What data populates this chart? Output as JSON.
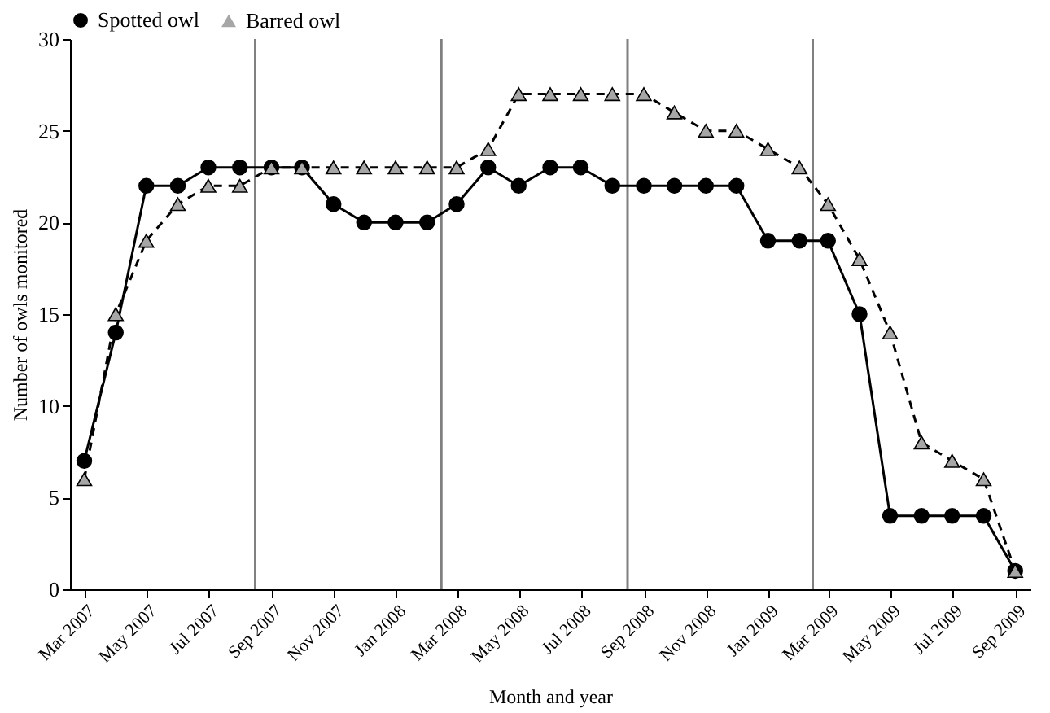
{
  "chart_data": {
    "type": "line",
    "xlabel": "Month and year",
    "ylabel": "Number of owls monitored",
    "x": [
      "2007-03",
      "2007-04",
      "2007-05",
      "2007-06",
      "2007-07",
      "2007-08",
      "2007-09",
      "2007-10",
      "2007-11",
      "2007-12",
      "2008-01",
      "2008-02",
      "2008-03",
      "2008-04",
      "2008-05",
      "2008-06",
      "2008-07",
      "2008-08",
      "2008-09",
      "2008-10",
      "2008-11",
      "2008-12",
      "2009-01",
      "2009-02",
      "2009-03",
      "2009-04",
      "2009-05",
      "2009-06",
      "2009-07",
      "2009-08",
      "2009-09"
    ],
    "series": [
      {
        "name": "Spotted owl",
        "color": "#000000",
        "marker": "circle",
        "line_style": "solid",
        "values": [
          7,
          14,
          22,
          22,
          23,
          23,
          23,
          23,
          21,
          20,
          20,
          20,
          21,
          23,
          22,
          23,
          23,
          22,
          22,
          22,
          22,
          22,
          19,
          19,
          19,
          15,
          4,
          4,
          4,
          4,
          1
        ]
      },
      {
        "name": "Barred owl",
        "color": "#a6a6a6",
        "marker": "triangle",
        "line_style": "dashed",
        "values": [
          6,
          15,
          19,
          21,
          22,
          22,
          23,
          23,
          23,
          23,
          23,
          23,
          23,
          24,
          27,
          27,
          27,
          27,
          27,
          26,
          25,
          25,
          24,
          23,
          21,
          18,
          14,
          8,
          7,
          6,
          1
        ]
      }
    ],
    "xlim": [
      "2007-02-15",
      "2009-09-16"
    ],
    "xticks": [
      {
        "value": "2007-03",
        "label": "Mar 2007"
      },
      {
        "value": "2007-05",
        "label": "May 2007"
      },
      {
        "value": "2007-07",
        "label": "Jul 2007"
      },
      {
        "value": "2007-09",
        "label": "Sep 2007"
      },
      {
        "value": "2007-11",
        "label": "Nov 2007"
      },
      {
        "value": "2008-01",
        "label": "Jan 2008"
      },
      {
        "value": "2008-03",
        "label": "Mar 2008"
      },
      {
        "value": "2008-05",
        "label": "May 2008"
      },
      {
        "value": "2008-07",
        "label": "Jul 2008"
      },
      {
        "value": "2008-09",
        "label": "Sep 2008"
      },
      {
        "value": "2008-11",
        "label": "Nov 2008"
      },
      {
        "value": "2009-01",
        "label": "Jan 2009"
      },
      {
        "value": "2009-03",
        "label": "Mar 2009"
      },
      {
        "value": "2009-05",
        "label": "May 2009"
      },
      {
        "value": "2009-07",
        "label": "Jul 2009"
      },
      {
        "value": "2009-09",
        "label": "Sep 2009"
      }
    ],
    "ylim": [
      0,
      30
    ],
    "yticks": [
      0,
      5,
      10,
      15,
      20,
      25,
      30
    ],
    "grid": false,
    "legend": "top",
    "ref_lines": [
      {
        "axis": "x",
        "value": "2007-08-16",
        "color": "#808080"
      },
      {
        "axis": "x",
        "value": "2008-02-15",
        "color": "#808080"
      },
      {
        "axis": "x",
        "value": "2008-08-16",
        "color": "#808080"
      },
      {
        "axis": "x",
        "value": "2009-02-14",
        "color": "#808080"
      }
    ]
  }
}
